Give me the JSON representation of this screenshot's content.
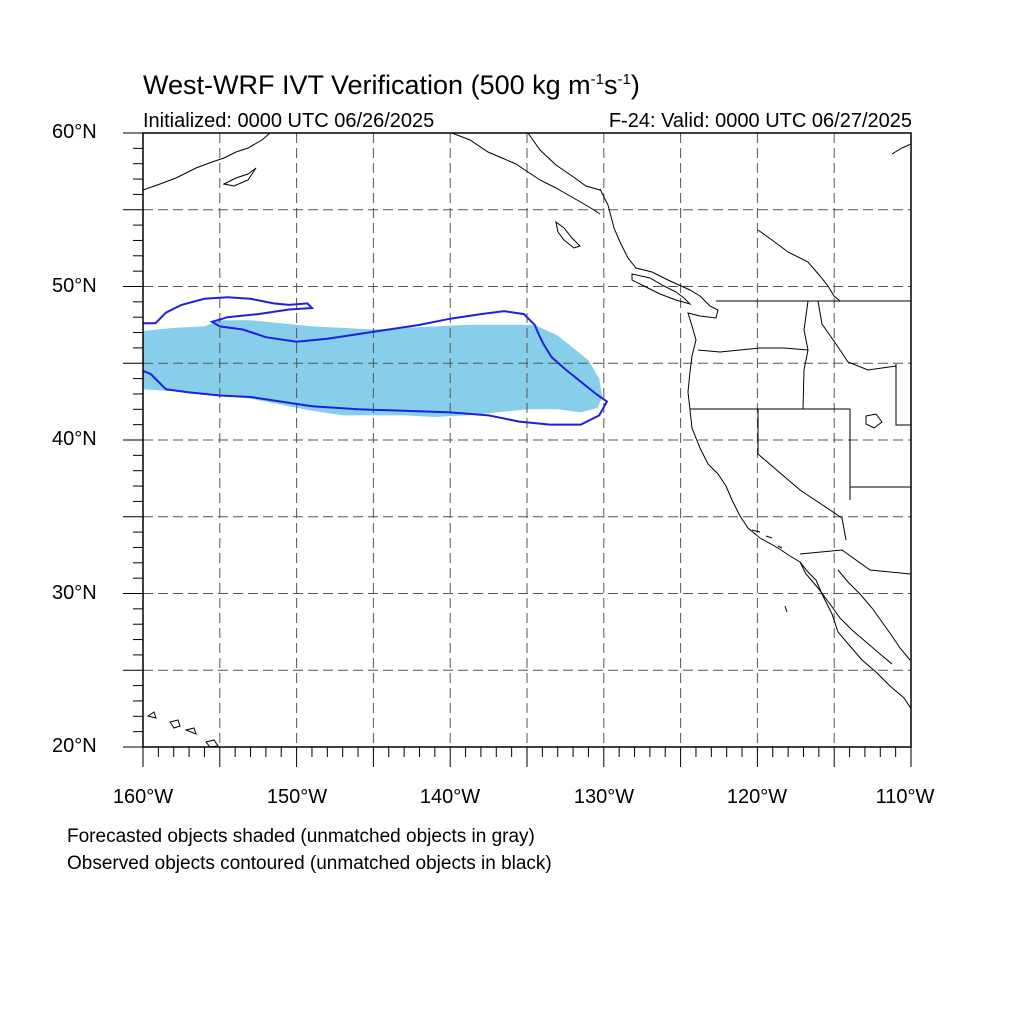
{
  "title": {
    "text": "West-WRF IVT Verification (500 kg m",
    "exp1": "-1",
    "mid": "s",
    "exp2": "-1",
    "end": ")"
  },
  "init_label": "Initialized: 0000 UTC 06/26/2025",
  "valid_label": "F-24: Valid: 0000 UTC 06/27/2025",
  "lat_labels": [
    "60°N",
    "50°N",
    "40°N",
    "30°N",
    "20°N"
  ],
  "lon_labels": [
    "160°W",
    "150°W",
    "140°W",
    "130°W",
    "120°W",
    "110°W"
  ],
  "notes": [
    "Forecasted objects shaded (unmatched objects in gray)",
    "Observed objects contoured (unmatched objects in black)"
  ],
  "colors": {
    "forecast_fill": "#87ceeb",
    "observed_contour": "#1f1fe0",
    "coastline": "#000000",
    "grid": "#555555"
  },
  "map_extent": {
    "lon_min": -160,
    "lon_max": -110,
    "lat_min": 20,
    "lat_max": 60
  },
  "forecast_object": {
    "matched": true,
    "outline_lonlat": [
      [
        -160,
        47.1
      ],
      [
        -158,
        47.3
      ],
      [
        -156,
        47.4
      ],
      [
        -155,
        47.8
      ],
      [
        -153,
        47.8
      ],
      [
        -151,
        47.6
      ],
      [
        -149,
        47.4
      ],
      [
        -147,
        47.3
      ],
      [
        -145,
        47.2
      ],
      [
        -143,
        47.3
      ],
      [
        -141,
        47.4
      ],
      [
        -139,
        47.5
      ],
      [
        -137,
        47.5
      ],
      [
        -134.5,
        47.5
      ],
      [
        -133,
        46.8
      ],
      [
        -132,
        46.0
      ],
      [
        -131,
        45.2
      ],
      [
        -130.3,
        44.0
      ],
      [
        -130.1,
        42.8
      ],
      [
        -130.4,
        42.1
      ],
      [
        -131.5,
        41.8
      ],
      [
        -133,
        42.0
      ],
      [
        -135,
        42.0
      ],
      [
        -137,
        41.8
      ],
      [
        -139,
        41.6
      ],
      [
        -141,
        41.5
      ],
      [
        -143,
        41.6
      ],
      [
        -145,
        41.6
      ],
      [
        -147,
        41.6
      ],
      [
        -149,
        41.9
      ],
      [
        -151,
        42.3
      ],
      [
        -153,
        42.7
      ],
      [
        -155,
        42.9
      ],
      [
        -157,
        43.1
      ],
      [
        -160,
        43.3
      ]
    ]
  },
  "observed_object": {
    "matched": true,
    "outline_lonlat": [
      [
        -160,
        47.6
      ],
      [
        -159.2,
        47.6
      ],
      [
        -159,
        47.8
      ],
      [
        -158.5,
        48.3
      ],
      [
        -157.5,
        48.8
      ],
      [
        -156,
        49.2
      ],
      [
        -154.5,
        49.3
      ],
      [
        -153,
        49.2
      ],
      [
        -151.5,
        48.9
      ],
      [
        -150.5,
        48.8
      ],
      [
        -149.3,
        48.9
      ],
      [
        -149,
        48.6
      ],
      [
        -150.5,
        48.5
      ],
      [
        -152.5,
        48.2
      ],
      [
        -154.5,
        48.0
      ],
      [
        -155.5,
        47.7
      ],
      [
        -155,
        47.4
      ],
      [
        -153.5,
        47.2
      ],
      [
        -152,
        46.7
      ],
      [
        -150,
        46.4
      ],
      [
        -148,
        46.6
      ],
      [
        -146,
        46.9
      ],
      [
        -144,
        47.2
      ],
      [
        -142,
        47.5
      ],
      [
        -140,
        47.9
      ],
      [
        -138,
        48.2
      ],
      [
        -136.5,
        48.4
      ],
      [
        -135.2,
        48.2
      ],
      [
        -134.5,
        47.5
      ],
      [
        -134.2,
        46.8
      ],
      [
        -133.9,
        46.2
      ],
      [
        -133.4,
        45.4
      ],
      [
        -132.5,
        44.6
      ],
      [
        -131.5,
        43.8
      ],
      [
        -130.5,
        43.0
      ],
      [
        -129.8,
        42.5
      ],
      [
        -130.3,
        41.6
      ],
      [
        -131.5,
        41.0
      ],
      [
        -133.5,
        41.0
      ],
      [
        -135.5,
        41.2
      ],
      [
        -137.5,
        41.6
      ],
      [
        -140,
        41.8
      ],
      [
        -143,
        41.9
      ],
      [
        -146,
        42.0
      ],
      [
        -149,
        42.2
      ],
      [
        -151,
        42.5
      ],
      [
        -153,
        42.8
      ],
      [
        -155,
        42.9
      ],
      [
        -157,
        43.1
      ],
      [
        -158.5,
        43.3
      ],
      [
        -159.5,
        44.3
      ],
      [
        -160,
        44.5
      ]
    ]
  }
}
